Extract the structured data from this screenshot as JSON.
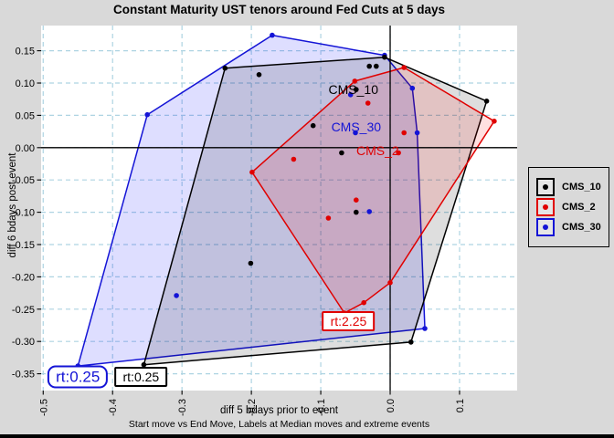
{
  "title": "Constant Maturity UST tenors around Fed Cuts at 5 days",
  "chart_data": {
    "type": "scatter",
    "title": "Constant Maturity UST tenors around Fed Cuts at 5 days",
    "xlabel": "diff 5 bdays prior to event",
    "sublabel": "Start move vs End Move, Labels at Median moves and extreme events",
    "ylabel": "diff 6 bdays post event",
    "grid": {
      "on": true,
      "color": "#aed4e2",
      "dash": "5 4"
    },
    "zero_line_color": "#000000",
    "x_axis": {
      "min": -0.503,
      "max": 0.183,
      "ticks": [
        {
          "v": -0.5,
          "label": "-0.5"
        },
        {
          "v": -0.4,
          "label": "-0.4"
        },
        {
          "v": -0.3,
          "label": "-0.3"
        },
        {
          "v": -0.2,
          "label": "-0.2"
        },
        {
          "v": -0.1,
          "label": "-0.1"
        },
        {
          "v": 0.0,
          "label": "0.0"
        },
        {
          "v": 0.1,
          "label": "0.1"
        }
      ]
    },
    "y_axis": {
      "min": -0.376,
      "max": 0.189,
      "ticks": [
        {
          "v": 0.15,
          "label": "0.15"
        },
        {
          "v": 0.1,
          "label": "0.10"
        },
        {
          "v": 0.05,
          "label": "0.05"
        },
        {
          "v": 0.0,
          "label": "0.00"
        },
        {
          "v": -0.05,
          "label": "-0.05"
        },
        {
          "v": -0.1,
          "label": "-0.10"
        },
        {
          "v": -0.15,
          "label": "-0.15"
        },
        {
          "v": -0.2,
          "label": "-0.20"
        },
        {
          "v": -0.25,
          "label": "-0.25"
        },
        {
          "v": -0.3,
          "label": "-0.30"
        },
        {
          "v": -0.35,
          "label": "-0.35"
        }
      ]
    },
    "series": [
      {
        "name": "CMS_10",
        "color": "#000000",
        "fill": "rgba(0,0,0,0.13)",
        "draw_order": 2,
        "hull": [
          [
            -0.355,
            -0.336
          ],
          [
            -0.238,
            0.123
          ],
          [
            -0.008,
            0.14
          ],
          [
            0.139,
            0.072
          ],
          [
            0.03,
            -0.301
          ]
        ],
        "points": [
          [
            -0.355,
            -0.336
          ],
          [
            -0.238,
            0.123
          ],
          [
            -0.189,
            0.113
          ],
          [
            -0.111,
            0.034
          ],
          [
            -0.049,
            0.09
          ],
          [
            -0.03,
            0.126
          ],
          [
            -0.02,
            0.126
          ],
          [
            -0.008,
            0.14
          ],
          [
            0.139,
            0.072
          ],
          [
            -0.07,
            -0.008
          ],
          [
            -0.049,
            -0.1
          ],
          [
            -0.201,
            -0.179
          ],
          [
            0.03,
            -0.301
          ]
        ]
      },
      {
        "name": "CMS_2",
        "color": "#e00000",
        "fill": "rgba(255,0,0,0.12)",
        "draw_order": 3,
        "hull": [
          [
            -0.199,
            -0.038
          ],
          [
            -0.051,
            0.103
          ],
          [
            0.02,
            0.124
          ],
          [
            0.15,
            0.041
          ],
          [
            0.0,
            -0.209
          ],
          [
            -0.038,
            -0.24
          ],
          [
            -0.066,
            -0.256
          ]
        ],
        "points": [
          [
            -0.199,
            -0.038
          ],
          [
            -0.051,
            0.103
          ],
          [
            0.02,
            0.124
          ],
          [
            0.15,
            0.041
          ],
          [
            0.0,
            -0.209
          ],
          [
            -0.038,
            -0.24
          ],
          [
            -0.066,
            -0.256
          ],
          [
            -0.139,
            -0.018
          ],
          [
            -0.032,
            0.069
          ],
          [
            0.02,
            0.023
          ],
          [
            0.012,
            -0.008
          ],
          [
            -0.049,
            -0.081
          ],
          [
            -0.089,
            -0.109
          ]
        ]
      },
      {
        "name": "CMS_30",
        "color": "#1414d6",
        "fill": "rgba(0,0,255,0.13)",
        "draw_order": 1,
        "hull": [
          [
            -0.45,
            -0.338
          ],
          [
            -0.35,
            0.051
          ],
          [
            -0.17,
            0.174
          ],
          [
            -0.008,
            0.143
          ],
          [
            0.032,
            0.092
          ],
          [
            0.039,
            0.023
          ],
          [
            0.05,
            -0.28
          ]
        ],
        "points": [
          [
            -0.45,
            -0.338
          ],
          [
            -0.35,
            0.051
          ],
          [
            -0.17,
            0.174
          ],
          [
            -0.008,
            0.143
          ],
          [
            0.032,
            0.092
          ],
          [
            0.039,
            0.023
          ],
          [
            0.05,
            -0.28
          ],
          [
            -0.057,
            0.082
          ],
          [
            -0.05,
            0.023
          ],
          [
            -0.03,
            -0.099
          ],
          [
            -0.308,
            -0.229
          ]
        ]
      }
    ],
    "annotations": {
      "median_labels": [
        {
          "text": "CMS_10",
          "color": "#000000",
          "x": -0.053,
          "y": 0.09
        },
        {
          "text": "CMS_30",
          "color": "#1414d6",
          "x": -0.049,
          "y": 0.032
        },
        {
          "text": "CMS_2",
          "color": "#e00000",
          "x": -0.018,
          "y": -0.004
        }
      ],
      "extreme_labels": [
        {
          "text": "rt:0.25",
          "color": "#1414d6",
          "x": -0.45,
          "y": -0.355,
          "rounded": true,
          "font_size": 17
        },
        {
          "text": "rt:0.25",
          "color": "#000000",
          "x": -0.359,
          "y": -0.355,
          "rounded": false,
          "font_size": 14
        },
        {
          "text": "rt:2.25",
          "color": "#e00000",
          "x": -0.06,
          "y": -0.268,
          "rounded": false,
          "font_size": 14
        }
      ]
    }
  },
  "legend": {
    "items": [
      {
        "label": "CMS_10",
        "color": "#000000"
      },
      {
        "label": "CMS_2",
        "color": "#e00000"
      },
      {
        "label": "CMS_30",
        "color": "#1414d6"
      }
    ]
  },
  "colors": {
    "figure_background": "#d9d9d9",
    "plot_background": "#ffffff",
    "gridline": "#aed4e2",
    "bottom_edge": "#000000"
  }
}
